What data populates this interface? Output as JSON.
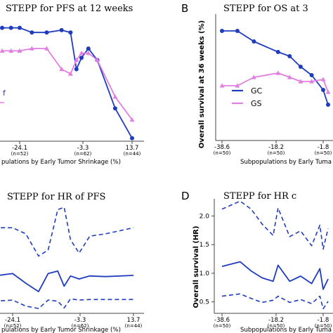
{
  "colors": {
    "gc": "#1f3cbf",
    "gs": "#e27ee2",
    "axis": "#444444"
  },
  "panels": {
    "A": {
      "title": "STEPP for PFS at 12 weeks",
      "xlabel": "pulations by Early Tumor Shrinkage (%)",
      "ticks": [
        {
          "value": "-24.1",
          "n": "(n=52)"
        },
        {
          "value": "-3.3",
          "n": "(n=62)"
        },
        {
          "value": "13.7",
          "n": "(n=44)"
        }
      ]
    },
    "B": {
      "label": "B",
      "title": "STEPP for OS at 3",
      "ylabel": "Overall survival at 36 weeks (%)",
      "xlabel": "Subpopulations by Early Tuma",
      "ticks": [
        {
          "value": "-38.6",
          "n": "(n=50)"
        },
        {
          "value": "-18.2",
          "n": "(n=50)"
        },
        {
          "value": "-1.8",
          "n": "(n=50)"
        }
      ],
      "legend": [
        {
          "name": "GC",
          "color": "#1f3cbf"
        },
        {
          "name": "GS",
          "color": "#e27ee2"
        }
      ]
    },
    "C": {
      "title": "STEPP for HR of PFS",
      "xlabel": "pulations by Early Tumor Shrinkage (%)",
      "ticks": [
        {
          "value": "-24.1",
          "n": "(n=52)"
        },
        {
          "value": "-3.3",
          "n": "(n=62)"
        },
        {
          "value": "13.7",
          "n": "(n=44)"
        }
      ]
    },
    "D": {
      "label": "D",
      "title": "STEPP for HR c",
      "ylabel": "Overall survival (HR)",
      "xlabel": "Subpopulations by Early Tuma",
      "ticks": [
        {
          "value": "-38.6",
          "n": "(n=50)"
        },
        {
          "value": "-18.2",
          "n": "(n=50)"
        },
        {
          "value": "-1.8",
          "n": "(n=50)"
        }
      ],
      "yticks": [
        "2.0",
        "1.5",
        "1.0",
        "0.5"
      ]
    }
  },
  "chart_data": [
    {
      "panel": "A",
      "type": "line",
      "title": "STEPP for PFS at 12 weeks",
      "xlabel": "pulations by Early Tumor Shrinkage (%)",
      "x": [
        -30,
        -27,
        -24.1,
        -20,
        -15,
        -10,
        -7,
        -5,
        -3.3,
        -1,
        2,
        8,
        13.7
      ],
      "ylim": [
        35,
        90
      ],
      "series": [
        {
          "name": "GC",
          "color": "#1f3cbf",
          "values": [
            84,
            84,
            84,
            82,
            82,
            83,
            82,
            66,
            71,
            75,
            70,
            49,
            36
          ]
        },
        {
          "name": "GS",
          "color": "#e27ee2",
          "values": [
            74,
            74,
            74,
            75,
            75,
            66,
            64,
            70,
            73,
            73,
            70,
            54,
            44
          ]
        }
      ]
    },
    {
      "panel": "B",
      "type": "line",
      "title": "STEPP for OS at 3",
      "ylabel": "Overall survival at 36 weeks (%)",
      "xlabel": "Subpopulations by Early Tuma",
      "x": [
        -38.6,
        -33,
        -27,
        -18.2,
        -14,
        -10,
        -6,
        -1.8,
        0
      ],
      "ylim": [
        40,
        100
      ],
      "series": [
        {
          "name": "GC",
          "color": "#1f3cbf",
          "values": [
            92,
            92,
            87,
            82,
            80,
            75,
            71,
            64,
            57
          ]
        },
        {
          "name": "GS",
          "color": "#e27ee2",
          "values": [
            66,
            66,
            70,
            72,
            70,
            68,
            68,
            69,
            63
          ]
        }
      ]
    },
    {
      "panel": "C",
      "type": "line",
      "title": "STEPP for HR of PFS",
      "xlabel": "pulations by Early Tumor Shrinkage (%)",
      "x": [
        -30,
        -24.1,
        -20,
        -16,
        -13,
        -10,
        -8,
        -6,
        -3.3,
        0,
        5,
        13.7
      ],
      "ylim": [
        0.3,
        2.2
      ],
      "series": [
        {
          "name": "upper",
          "color": "#1f3cbf",
          "values": [
            1.72,
            1.72,
            1.62,
            1.25,
            1.35,
            2.02,
            2.06,
            1.52,
            1.3,
            1.58,
            1.62,
            1.72
          ]
        },
        {
          "name": "estimate",
          "color": "#1f3cbf",
          "values": [
            0.92,
            0.96,
            0.8,
            0.66,
            0.96,
            1.0,
            0.75,
            0.92,
            0.87,
            0.92,
            0.91,
            0.93
          ]
        },
        {
          "name": "lower",
          "color": "#1f3cbf",
          "values": [
            0.5,
            0.52,
            0.42,
            0.38,
            0.52,
            0.5,
            0.39,
            0.54,
            0.52,
            0.53,
            0.53,
            0.53
          ]
        }
      ]
    },
    {
      "panel": "D",
      "type": "line",
      "title": "STEPP for HR c",
      "ylabel": "Overall survival (HR)",
      "xlabel": "Subpopulations by Early Tuma",
      "x": [
        -38.6,
        -32,
        -28,
        -24,
        -20,
        -18.2,
        -14,
        -10,
        -6,
        -3,
        -1.8,
        0
      ],
      "ylim": [
        0.3,
        2.3
      ],
      "series": [
        {
          "name": "upper",
          "color": "#1f3cbf",
          "values": [
            2.12,
            2.26,
            2.12,
            1.86,
            1.66,
            2.14,
            1.64,
            1.74,
            1.48,
            1.84,
            1.42,
            1.78
          ]
        },
        {
          "name": "estimate",
          "color": "#1f3cbf",
          "values": [
            1.12,
            1.2,
            1.04,
            0.92,
            0.86,
            1.14,
            0.86,
            0.95,
            0.82,
            1.08,
            0.72,
            0.9
          ]
        },
        {
          "name": "lower",
          "color": "#1f3cbf",
          "values": [
            0.6,
            0.64,
            0.56,
            0.49,
            0.53,
            0.6,
            0.49,
            0.54,
            0.47,
            0.6,
            0.38,
            0.51
          ]
        }
      ]
    }
  ]
}
